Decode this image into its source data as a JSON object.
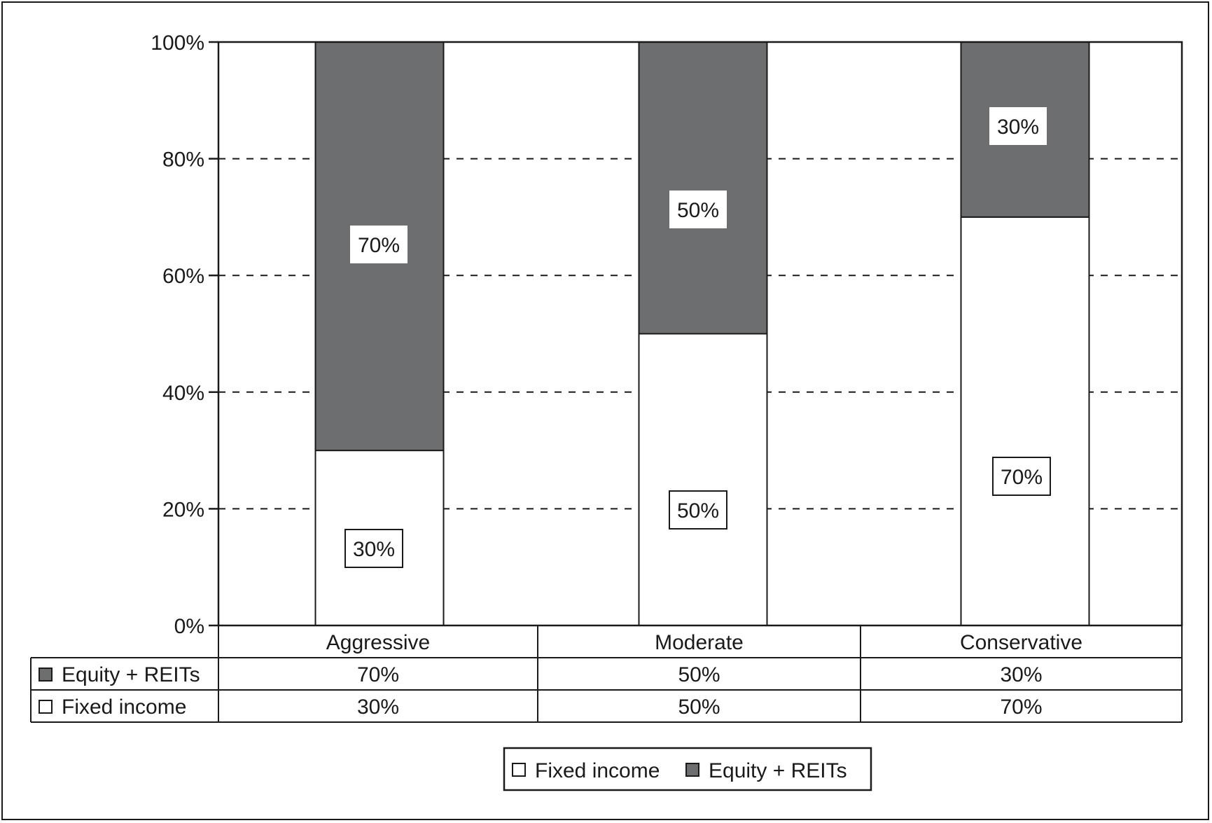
{
  "chart_data": {
    "type": "bar",
    "stacked": true,
    "categories": [
      "Aggressive",
      "Moderate",
      "Conservative"
    ],
    "series": [
      {
        "name": "Fixed income",
        "values": [
          30,
          50,
          70
        ],
        "color": "#ffffff"
      },
      {
        "name": "Equity + REITs",
        "values": [
          70,
          50,
          30
        ],
        "color": "#6d6e70"
      }
    ],
    "ylim": [
      0,
      100
    ],
    "yticks": [
      "0%",
      "20%",
      "40%",
      "60%",
      "80%",
      "100%"
    ],
    "grid": "dashed horizontal",
    "legend_placement": "bottom-center",
    "legend_items": [
      "Fixed income",
      "Equity + REITs"
    ],
    "data_table": {
      "rows": [
        {
          "label": "Equity + REITs",
          "swatch": "#6d6e70",
          "values": [
            "70%",
            "50%",
            "30%"
          ]
        },
        {
          "label": "Fixed income",
          "swatch": "#ffffff",
          "values": [
            "30%",
            "50%",
            "70%"
          ]
        }
      ]
    }
  }
}
